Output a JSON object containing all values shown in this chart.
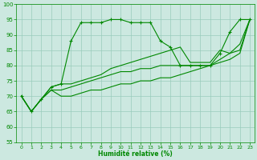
{
  "xlabel": "Humidité relative (%)",
  "xlim": [
    -0.5,
    23.5
  ],
  "ylim": [
    55,
    100
  ],
  "yticks": [
    55,
    60,
    65,
    70,
    75,
    80,
    85,
    90,
    95,
    100
  ],
  "xticks": [
    0,
    1,
    2,
    3,
    4,
    5,
    6,
    7,
    8,
    9,
    10,
    11,
    12,
    13,
    14,
    15,
    16,
    17,
    18,
    19,
    20,
    21,
    22,
    23
  ],
  "bg_color": "#cce8e0",
  "grid_color": "#99ccbb",
  "line_color": "#008800",
  "lines": [
    {
      "x": [
        0,
        1,
        2,
        3,
        4,
        5,
        6,
        7,
        8,
        9,
        10,
        11,
        12,
        13,
        14,
        15,
        16,
        17,
        18,
        19,
        20,
        21,
        22,
        23
      ],
      "y": [
        70,
        65,
        69,
        73,
        74,
        88,
        94,
        94,
        94,
        95,
        95,
        94,
        94,
        94,
        88,
        86,
        80,
        80,
        80,
        80,
        84,
        91,
        95,
        95
      ],
      "marker": true
    },
    {
      "x": [
        0,
        1,
        2,
        3,
        4,
        5,
        6,
        7,
        8,
        9,
        10,
        11,
        12,
        13,
        14,
        15,
        16,
        17,
        18,
        19,
        20,
        21,
        22,
        23
      ],
      "y": [
        70,
        65,
        69,
        73,
        74,
        74,
        75,
        76,
        77,
        79,
        80,
        81,
        82,
        83,
        84,
        85,
        86,
        81,
        81,
        81,
        85,
        84,
        85,
        95
      ],
      "marker": false
    },
    {
      "x": [
        0,
        1,
        2,
        3,
        4,
        5,
        6,
        7,
        8,
        9,
        10,
        11,
        12,
        13,
        14,
        15,
        16,
        17,
        18,
        19,
        20,
        21,
        22,
        23
      ],
      "y": [
        70,
        65,
        69,
        72,
        72,
        73,
        74,
        75,
        76,
        77,
        78,
        78,
        79,
        79,
        80,
        80,
        80,
        80,
        80,
        80,
        82,
        84,
        87,
        95
      ],
      "marker": false
    },
    {
      "x": [
        0,
        1,
        2,
        3,
        4,
        5,
        6,
        7,
        8,
        9,
        10,
        11,
        12,
        13,
        14,
        15,
        16,
        17,
        18,
        19,
        20,
        21,
        22,
        23
      ],
      "y": [
        70,
        65,
        69,
        72,
        70,
        70,
        71,
        72,
        72,
        73,
        74,
        74,
        75,
        75,
        76,
        76,
        77,
        78,
        79,
        80,
        81,
        82,
        84,
        95
      ],
      "marker": false
    }
  ]
}
